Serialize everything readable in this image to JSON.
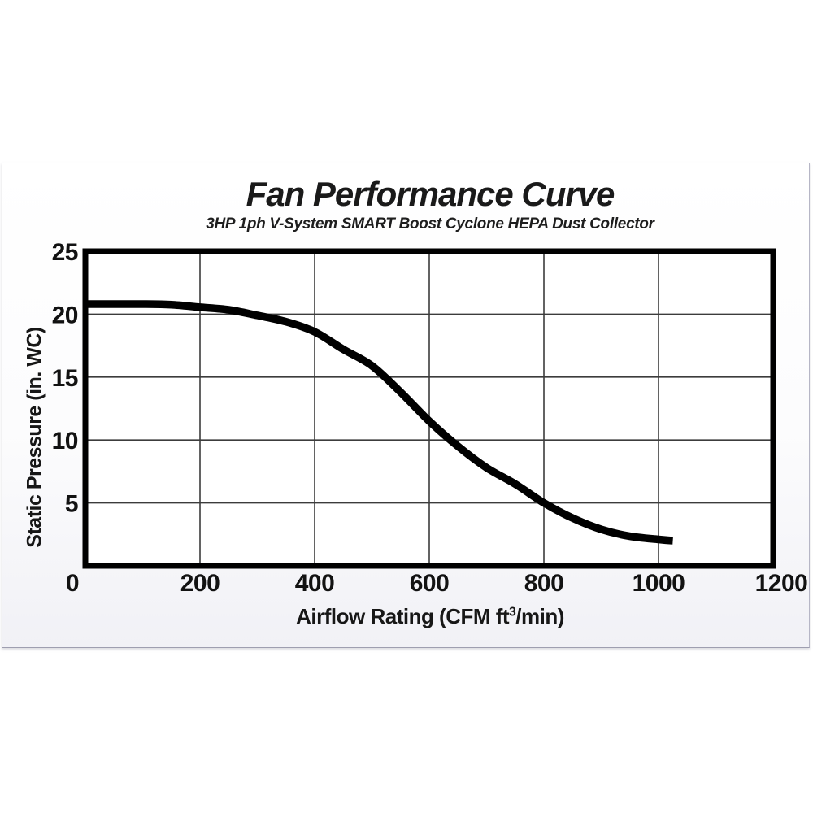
{
  "chart_data": {
    "type": "line",
    "title": "Fan Performance Curve",
    "subtitle": "3HP 1ph V-System SMART Boost Cyclone HEPA Dust Collector",
    "xlabel": "Airflow Rating (CFM ft³/min)",
    "ylabel": "Static Pressure (in. WC)",
    "xlim": [
      0,
      1200
    ],
    "ylim": [
      0,
      25
    ],
    "x_ticks": [
      0,
      200,
      400,
      600,
      800,
      1000,
      1200
    ],
    "y_ticks": [
      5,
      10,
      15,
      20,
      25
    ],
    "grid": true,
    "legend": "none",
    "line_color": "#000000",
    "grid_color": "#3c3c3c",
    "frame_color": "#000000",
    "series": [
      {
        "name": "static-pressure-vs-airflow",
        "points": [
          [
            0,
            20.8
          ],
          [
            50,
            20.8
          ],
          [
            100,
            20.8
          ],
          [
            150,
            20.75
          ],
          [
            200,
            20.55
          ],
          [
            250,
            20.35
          ],
          [
            300,
            19.9
          ],
          [
            350,
            19.4
          ],
          [
            400,
            18.6
          ],
          [
            450,
            17.2
          ],
          [
            500,
            15.9
          ],
          [
            550,
            13.8
          ],
          [
            600,
            11.5
          ],
          [
            650,
            9.5
          ],
          [
            700,
            7.8
          ],
          [
            750,
            6.5
          ],
          [
            800,
            5.0
          ],
          [
            850,
            3.8
          ],
          [
            900,
            2.9
          ],
          [
            950,
            2.35
          ],
          [
            1000,
            2.1
          ],
          [
            1025,
            2.0
          ]
        ]
      }
    ]
  }
}
